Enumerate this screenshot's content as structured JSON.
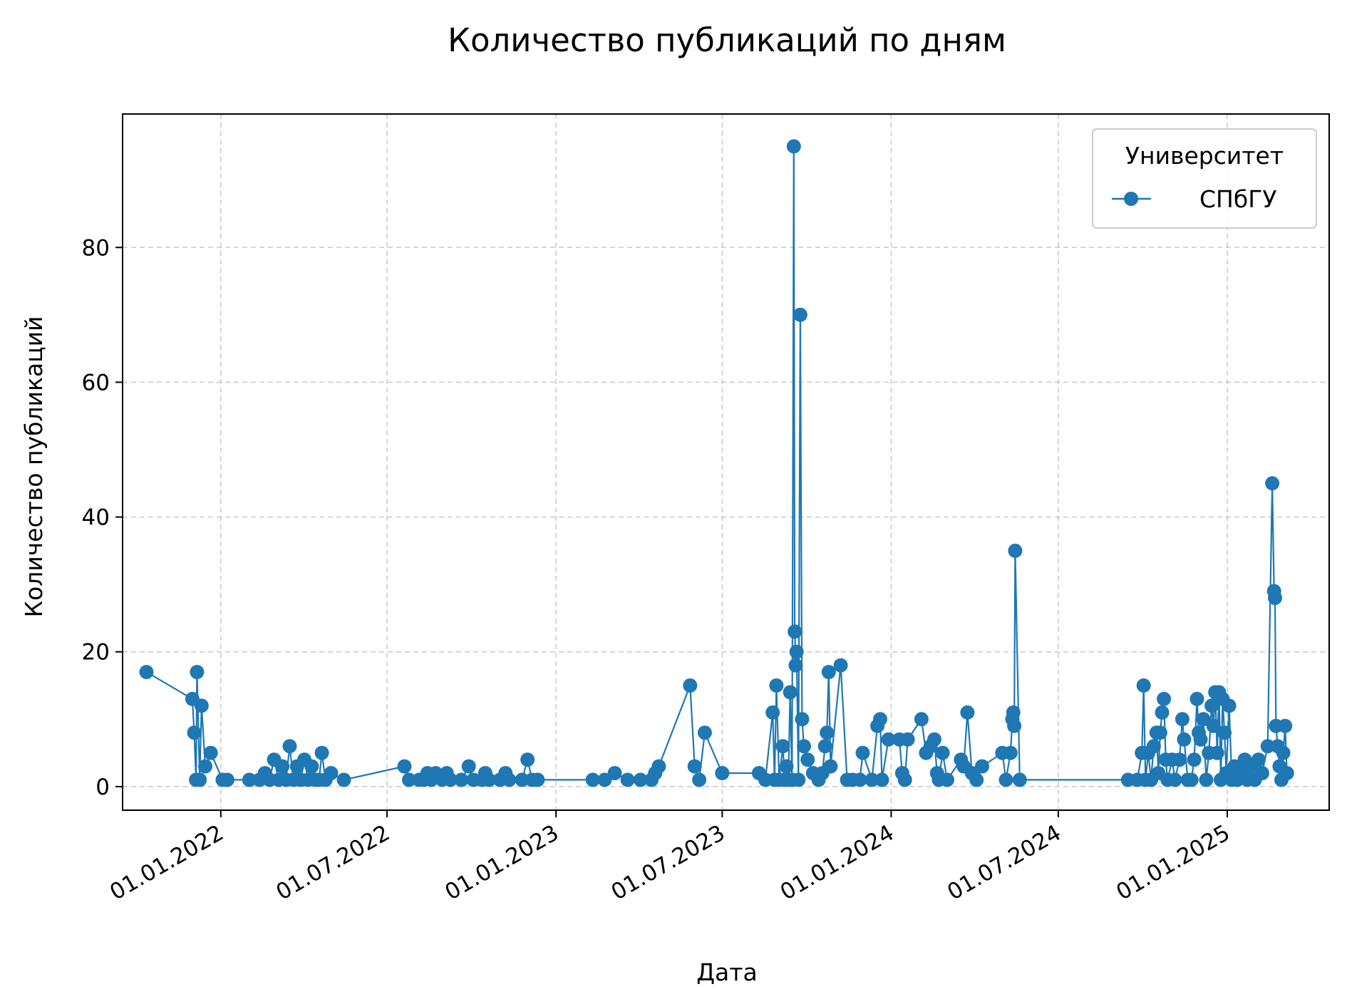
{
  "chart_data": {
    "type": "line",
    "title": "Количество публикаций по дням",
    "xlabel": "Дата",
    "ylabel": "Количество публикаций",
    "x_range": [
      "2021-09-16",
      "2025-04-22"
    ],
    "ylim": [
      -3.5,
      99.8
    ],
    "x_ticks": [
      {
        "date": "2022-01-01",
        "label": "01.01.2022"
      },
      {
        "date": "2022-07-01",
        "label": "01.07.2022"
      },
      {
        "date": "2023-01-01",
        "label": "01.01.2023"
      },
      {
        "date": "2023-07-01",
        "label": "01.07.2023"
      },
      {
        "date": "2024-01-01",
        "label": "01.01.2024"
      },
      {
        "date": "2024-07-01",
        "label": "01.07.2024"
      },
      {
        "date": "2025-01-01",
        "label": "01.01.2025"
      }
    ],
    "y_ticks": [
      0,
      20,
      40,
      60,
      80
    ],
    "grid": true,
    "legend": {
      "title": "Университет",
      "position": "top-right"
    },
    "series": [
      {
        "name": "СПбГУ",
        "color": "#1f77b4",
        "marker": "circle",
        "points": [
          [
            "2021-10-12",
            17
          ],
          [
            "2021-12-01",
            13
          ],
          [
            "2021-12-03",
            8
          ],
          [
            "2021-12-05",
            1
          ],
          [
            "2021-12-06",
            17
          ],
          [
            "2021-12-09",
            1
          ],
          [
            "2021-12-11",
            12
          ],
          [
            "2021-12-15",
            3
          ],
          [
            "2021-12-21",
            5
          ],
          [
            "2022-01-03",
            1
          ],
          [
            "2022-01-08",
            1
          ],
          [
            "2022-02-01",
            1
          ],
          [
            "2022-02-12",
            1
          ],
          [
            "2022-02-18",
            2
          ],
          [
            "2022-02-23",
            1
          ],
          [
            "2022-02-28",
            4
          ],
          [
            "2022-03-05",
            1
          ],
          [
            "2022-03-09",
            3
          ],
          [
            "2022-03-13",
            1
          ],
          [
            "2022-03-17",
            6
          ],
          [
            "2022-03-21",
            1
          ],
          [
            "2022-03-25",
            3
          ],
          [
            "2022-03-29",
            1
          ],
          [
            "2022-04-02",
            4
          ],
          [
            "2022-04-06",
            1
          ],
          [
            "2022-04-10",
            3
          ],
          [
            "2022-04-14",
            1
          ],
          [
            "2022-04-18",
            1
          ],
          [
            "2022-04-21",
            5
          ],
          [
            "2022-04-25",
            1
          ],
          [
            "2022-05-01",
            2
          ],
          [
            "2022-05-15",
            1
          ],
          [
            "2022-07-20",
            3
          ],
          [
            "2022-07-25",
            1
          ],
          [
            "2022-08-05",
            1
          ],
          [
            "2022-08-10",
            1
          ],
          [
            "2022-08-14",
            2
          ],
          [
            "2022-08-18",
            1
          ],
          [
            "2022-08-23",
            2
          ],
          [
            "2022-08-30",
            1
          ],
          [
            "2022-09-04",
            2
          ],
          [
            "2022-09-08",
            1
          ],
          [
            "2022-09-20",
            1
          ],
          [
            "2022-09-28",
            3
          ],
          [
            "2022-10-03",
            1
          ],
          [
            "2022-10-12",
            1
          ],
          [
            "2022-10-16",
            2
          ],
          [
            "2022-10-20",
            1
          ],
          [
            "2022-11-01",
            1
          ],
          [
            "2022-11-07",
            2
          ],
          [
            "2022-11-11",
            1
          ],
          [
            "2022-11-25",
            1
          ],
          [
            "2022-12-01",
            4
          ],
          [
            "2022-12-06",
            1
          ],
          [
            "2022-12-12",
            1
          ],
          [
            "2023-02-10",
            1
          ],
          [
            "2023-02-23",
            1
          ],
          [
            "2023-03-06",
            2
          ],
          [
            "2023-03-20",
            1
          ],
          [
            "2023-04-03",
            1
          ],
          [
            "2023-04-15",
            1
          ],
          [
            "2023-04-19",
            2
          ],
          [
            "2023-04-23",
            3
          ],
          [
            "2023-05-27",
            15
          ],
          [
            "2023-06-01",
            3
          ],
          [
            "2023-06-06",
            1
          ],
          [
            "2023-06-12",
            8
          ],
          [
            "2023-07-01",
            2
          ],
          [
            "2023-08-10",
            2
          ],
          [
            "2023-08-17",
            1
          ],
          [
            "2023-08-25",
            11
          ],
          [
            "2023-08-27",
            1
          ],
          [
            "2023-08-29",
            15
          ],
          [
            "2023-09-01",
            1
          ],
          [
            "2023-09-05",
            6
          ],
          [
            "2023-09-07",
            1
          ],
          [
            "2023-09-09",
            3
          ],
          [
            "2023-09-11",
            1
          ],
          [
            "2023-09-13",
            14
          ],
          [
            "2023-09-15",
            1
          ],
          [
            "2023-09-17",
            95
          ],
          [
            "2023-09-18",
            23
          ],
          [
            "2023-09-19",
            18
          ],
          [
            "2023-09-20",
            20
          ],
          [
            "2023-09-22",
            1
          ],
          [
            "2023-09-24",
            70
          ],
          [
            "2023-09-26",
            10
          ],
          [
            "2023-09-28",
            6
          ],
          [
            "2023-10-02",
            4
          ],
          [
            "2023-10-08",
            2
          ],
          [
            "2023-10-14",
            1
          ],
          [
            "2023-10-18",
            2
          ],
          [
            "2023-10-21",
            6
          ],
          [
            "2023-10-23",
            8
          ],
          [
            "2023-10-25",
            17
          ],
          [
            "2023-10-27",
            3
          ],
          [
            "2023-11-07",
            18
          ],
          [
            "2023-11-14",
            1
          ],
          [
            "2023-11-20",
            1
          ],
          [
            "2023-11-28",
            1
          ],
          [
            "2023-12-01",
            5
          ],
          [
            "2023-12-11",
            1
          ],
          [
            "2023-12-17",
            9
          ],
          [
            "2023-12-20",
            10
          ],
          [
            "2023-12-22",
            1
          ],
          [
            "2023-12-29",
            7
          ],
          [
            "2024-01-10",
            7
          ],
          [
            "2024-01-13",
            2
          ],
          [
            "2024-01-16",
            1
          ],
          [
            "2024-01-19",
            7
          ],
          [
            "2024-02-03",
            10
          ],
          [
            "2024-02-08",
            5
          ],
          [
            "2024-02-13",
            6
          ],
          [
            "2024-02-17",
            7
          ],
          [
            "2024-02-20",
            2
          ],
          [
            "2024-02-22",
            1
          ],
          [
            "2024-02-26",
            5
          ],
          [
            "2024-03-02",
            1
          ],
          [
            "2024-03-17",
            4
          ],
          [
            "2024-03-20",
            3
          ],
          [
            "2024-03-24",
            11
          ],
          [
            "2024-03-29",
            2
          ],
          [
            "2024-04-03",
            1
          ],
          [
            "2024-04-09",
            3
          ],
          [
            "2024-05-01",
            5
          ],
          [
            "2024-05-05",
            1
          ],
          [
            "2024-05-10",
            5
          ],
          [
            "2024-05-12",
            10
          ],
          [
            "2024-05-13",
            11
          ],
          [
            "2024-05-14",
            9
          ],
          [
            "2024-05-15",
            35
          ],
          [
            "2024-05-20",
            1
          ],
          [
            "2024-09-15",
            1
          ],
          [
            "2024-09-25",
            1
          ],
          [
            "2024-09-30",
            5
          ],
          [
            "2024-10-02",
            15
          ],
          [
            "2024-10-04",
            1
          ],
          [
            "2024-10-07",
            5
          ],
          [
            "2024-10-10",
            1
          ],
          [
            "2024-10-13",
            6
          ],
          [
            "2024-10-16",
            8
          ],
          [
            "2024-10-18",
            2
          ],
          [
            "2024-10-20",
            8
          ],
          [
            "2024-10-22",
            11
          ],
          [
            "2024-10-24",
            13
          ],
          [
            "2024-10-26",
            4
          ],
          [
            "2024-10-28",
            1
          ],
          [
            "2024-11-02",
            4
          ],
          [
            "2024-11-05",
            1
          ],
          [
            "2024-11-10",
            4
          ],
          [
            "2024-11-13",
            10
          ],
          [
            "2024-11-15",
            7
          ],
          [
            "2024-11-19",
            1
          ],
          [
            "2024-11-23",
            1
          ],
          [
            "2024-11-26",
            4
          ],
          [
            "2024-11-29",
            13
          ],
          [
            "2024-12-01",
            8
          ],
          [
            "2024-12-03",
            7
          ],
          [
            "2024-12-06",
            10
          ],
          [
            "2024-12-09",
            1
          ],
          [
            "2024-12-12",
            5
          ],
          [
            "2024-12-15",
            12
          ],
          [
            "2024-12-17",
            9
          ],
          [
            "2024-12-19",
            14
          ],
          [
            "2024-12-21",
            5
          ],
          [
            "2024-12-23",
            14
          ],
          [
            "2024-12-25",
            1
          ],
          [
            "2024-12-27",
            13
          ],
          [
            "2024-12-29",
            8
          ],
          [
            "2024-12-31",
            2
          ],
          [
            "2025-01-03",
            12
          ],
          [
            "2025-01-06",
            1
          ],
          [
            "2025-01-09",
            3
          ],
          [
            "2025-01-12",
            1
          ],
          [
            "2025-01-16",
            2
          ],
          [
            "2025-01-20",
            4
          ],
          [
            "2025-01-23",
            1
          ],
          [
            "2025-01-27",
            3
          ],
          [
            "2025-01-31",
            1
          ],
          [
            "2025-02-04",
            4
          ],
          [
            "2025-02-08",
            2
          ],
          [
            "2025-02-14",
            6
          ],
          [
            "2025-02-19",
            45
          ],
          [
            "2025-02-21",
            29
          ],
          [
            "2025-02-22",
            28
          ],
          [
            "2025-02-23",
            9
          ],
          [
            "2025-02-25",
            6
          ],
          [
            "2025-02-27",
            3
          ],
          [
            "2025-03-01",
            1
          ],
          [
            "2025-03-03",
            5
          ],
          [
            "2025-03-05",
            9
          ],
          [
            "2025-03-07",
            2
          ]
        ]
      }
    ]
  }
}
